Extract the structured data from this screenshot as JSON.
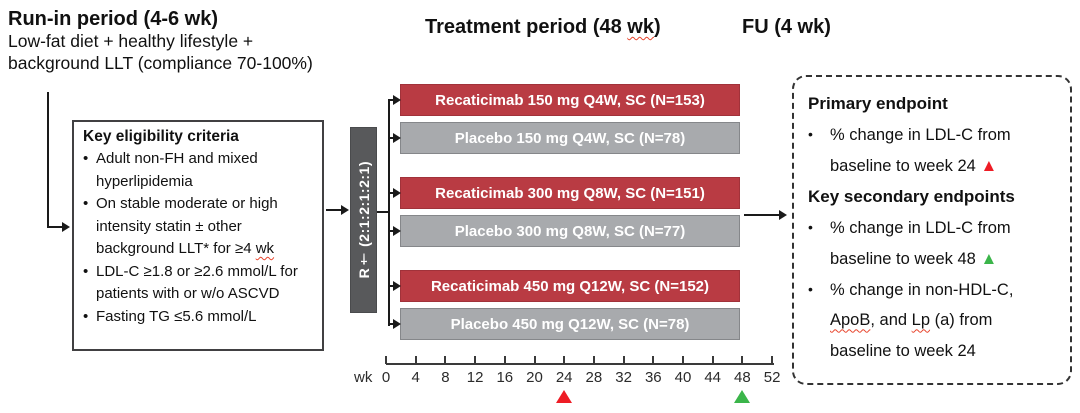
{
  "colors": {
    "drug_bar": "#b93b43",
    "drug_bar_border": "#a1323a",
    "placebo_bar": "#a8aaad",
    "placebo_bar_border": "#85878a",
    "randomization_bar": "#58595b",
    "bar_text": "#ffffff",
    "connector": "#1a1a1a",
    "marker_red": "#ee1c25",
    "marker_green": "#3bb54a",
    "squiggle": "#e8442c"
  },
  "runin": {
    "title": "Run-in period (4-6 wk)",
    "subtitle_lines": [
      "Low-fat diet + healthy lifestyle +",
      "background LLT (compliance 70-100%)"
    ]
  },
  "treatment": {
    "title_segments": [
      {
        "text": "Treatment period (48 "
      },
      {
        "text": "wk",
        "squiggle": true
      },
      {
        "text": ")"
      }
    ]
  },
  "fu": {
    "title": "FU (4 wk)"
  },
  "eligibility": {
    "title": "Key eligibility criteria",
    "items": [
      [
        {
          "text": "Adult non-FH and mixed hyperlipidemia"
        }
      ],
      [
        {
          "text": "On stable moderate or high intensity statin ± other background LLT* for ≥4 "
        },
        {
          "text": "wk",
          "squiggle": true
        }
      ],
      [
        {
          "text": "LDL-C ≥1.8 or ≥2.6 mmol/L for patients with or w/o ASCVD"
        }
      ],
      [
        {
          "text": "Fasting TG ≤5.6 mmol/L"
        }
      ]
    ]
  },
  "randomization": {
    "label": "R† (2:1:2:1:2:1)"
  },
  "arms": [
    {
      "label": "Recaticimab 150 mg Q4W, SC (N=153)",
      "type": "drug"
    },
    {
      "label": "Placebo 150 mg Q4W, SC (N=78)",
      "type": "placebo"
    },
    {
      "label": "Recaticimab 300 mg Q8W, SC (N=151)",
      "type": "drug"
    },
    {
      "label": "Placebo 300 mg Q8W, SC (N=77)",
      "type": "placebo"
    },
    {
      "label": "Recaticimab 450 mg Q12W, SC (N=152)",
      "type": "drug"
    },
    {
      "label": "Placebo 450 mg Q12W, SC (N=78)",
      "type": "placebo"
    }
  ],
  "timeline": {
    "unit_label": "wk",
    "ticks": [
      0,
      4,
      8,
      12,
      16,
      20,
      24,
      28,
      32,
      36,
      40,
      44,
      48,
      52
    ],
    "markers": [
      {
        "week": 24,
        "color": "#ee1c25",
        "symbol": "▲"
      },
      {
        "week": 48,
        "color": "#3bb54a",
        "symbol": "▲"
      }
    ]
  },
  "endpoints": {
    "primary_title": "Primary endpoint",
    "primary_items": [
      [
        {
          "text": "% change in LDL-C from baseline to week 24 "
        },
        {
          "text": "▲",
          "marker_color": "#ee1c25"
        }
      ]
    ],
    "secondary_title": "Key secondary endpoints",
    "secondary_items": [
      [
        {
          "text": "% change in LDL-C from baseline to week 48 "
        },
        {
          "text": "▲",
          "marker_color": "#3bb54a"
        }
      ],
      [
        {
          "text": "% change in non-HDL-C, "
        },
        {
          "text": "ApoB",
          "squiggle": true
        },
        {
          "text": ", and "
        },
        {
          "text": "Lp",
          "squiggle": true
        },
        {
          "text": " (a) from baseline to week 24"
        }
      ]
    ]
  }
}
